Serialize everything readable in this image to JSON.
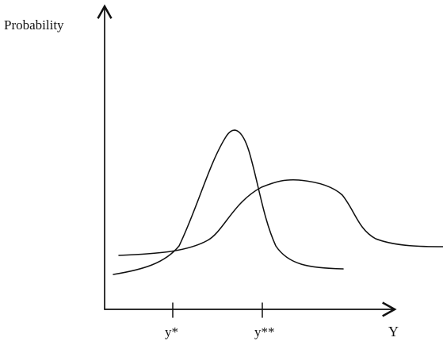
{
  "diagram": {
    "y_axis_label": "Probability",
    "x_axis_label": "Y",
    "tick_labels": [
      "y*",
      "y**"
    ],
    "curves": [
      {
        "description": "narrow peaked distribution"
      },
      {
        "description": "wide flatter distribution"
      }
    ]
  }
}
